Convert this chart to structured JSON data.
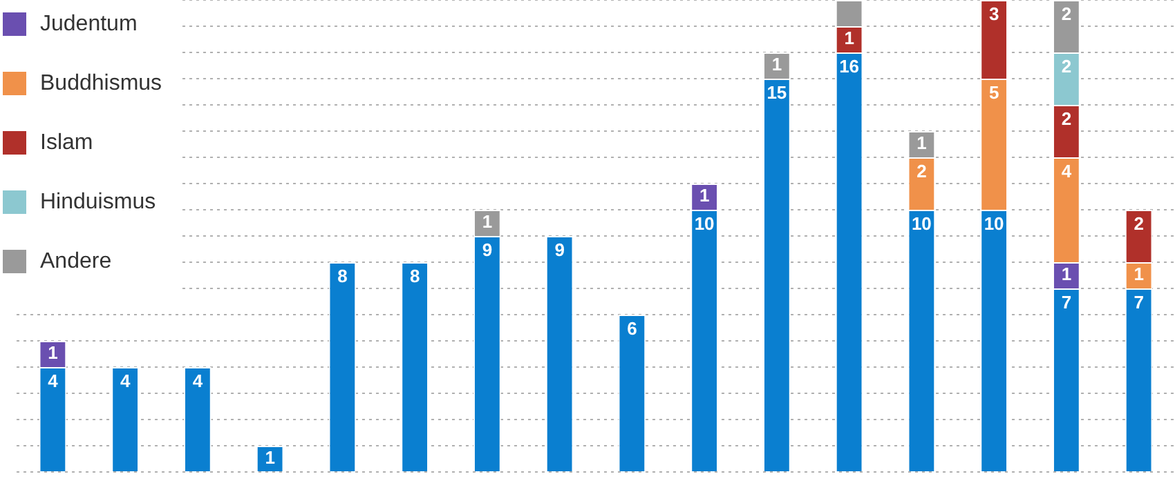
{
  "chart_data": {
    "type": "bar",
    "stacked": true,
    "categories": [
      null,
      null,
      null,
      null,
      null,
      null,
      null,
      null,
      null,
      null,
      null,
      null,
      null,
      null,
      null,
      null
    ],
    "ylim": [
      0,
      18
    ],
    "grid": "y",
    "tick_labels": false,
    "legend": "top left",
    "series": [
      {
        "color": "#0a7fd0",
        "values": [
          4,
          4,
          4,
          1,
          8,
          8,
          9,
          9,
          6,
          10,
          15,
          16,
          10,
          10,
          7,
          7
        ],
        "value_labels": [
          "4",
          "4",
          "4",
          "1",
          "8",
          "8",
          "9",
          "9",
          "6",
          "10",
          "15",
          "16",
          "10",
          "10",
          "7",
          "7"
        ]
      },
      {
        "name": "Judentum",
        "color": "#6a4fb0",
        "values": [
          1,
          null,
          null,
          null,
          null,
          null,
          null,
          null,
          null,
          1,
          null,
          null,
          null,
          null,
          1,
          null
        ],
        "value_labels": [
          "1",
          null,
          null,
          null,
          null,
          null,
          null,
          null,
          null,
          "1",
          null,
          null,
          null,
          null,
          "1",
          null
        ]
      },
      {
        "name": "Buddhismus",
        "color": "#f0914a",
        "values": [
          null,
          null,
          null,
          null,
          null,
          null,
          null,
          null,
          null,
          null,
          null,
          null,
          2,
          5,
          4,
          1
        ],
        "value_labels": [
          null,
          null,
          null,
          null,
          null,
          null,
          null,
          null,
          null,
          null,
          null,
          null,
          "2",
          "5",
          "4",
          "1"
        ]
      },
      {
        "name": "Islam",
        "color": "#b0302a",
        "values": [
          null,
          null,
          null,
          null,
          null,
          null,
          null,
          null,
          null,
          null,
          null,
          1,
          null,
          3,
          2,
          2
        ],
        "value_labels": [
          null,
          null,
          null,
          null,
          null,
          null,
          null,
          null,
          null,
          null,
          null,
          "1",
          null,
          "3",
          "2",
          "2"
        ]
      },
      {
        "name": "Hinduismus",
        "color": "#8cc8d0",
        "values": [
          null,
          null,
          null,
          null,
          null,
          null,
          null,
          null,
          null,
          null,
          null,
          null,
          null,
          null,
          2,
          null
        ],
        "value_labels": [
          null,
          null,
          null,
          null,
          null,
          null,
          null,
          null,
          null,
          null,
          null,
          null,
          null,
          null,
          "2",
          null
        ]
      },
      {
        "name": "Andere",
        "color": "#9a9a9a",
        "values": [
          null,
          null,
          null,
          null,
          null,
          null,
          1,
          null,
          null,
          null,
          1,
          1,
          1,
          null,
          2,
          null
        ],
        "value_labels": [
          null,
          null,
          null,
          null,
          null,
          null,
          "1",
          null,
          null,
          null,
          "1",
          null,
          "1",
          null,
          "2",
          null
        ]
      }
    ]
  }
}
